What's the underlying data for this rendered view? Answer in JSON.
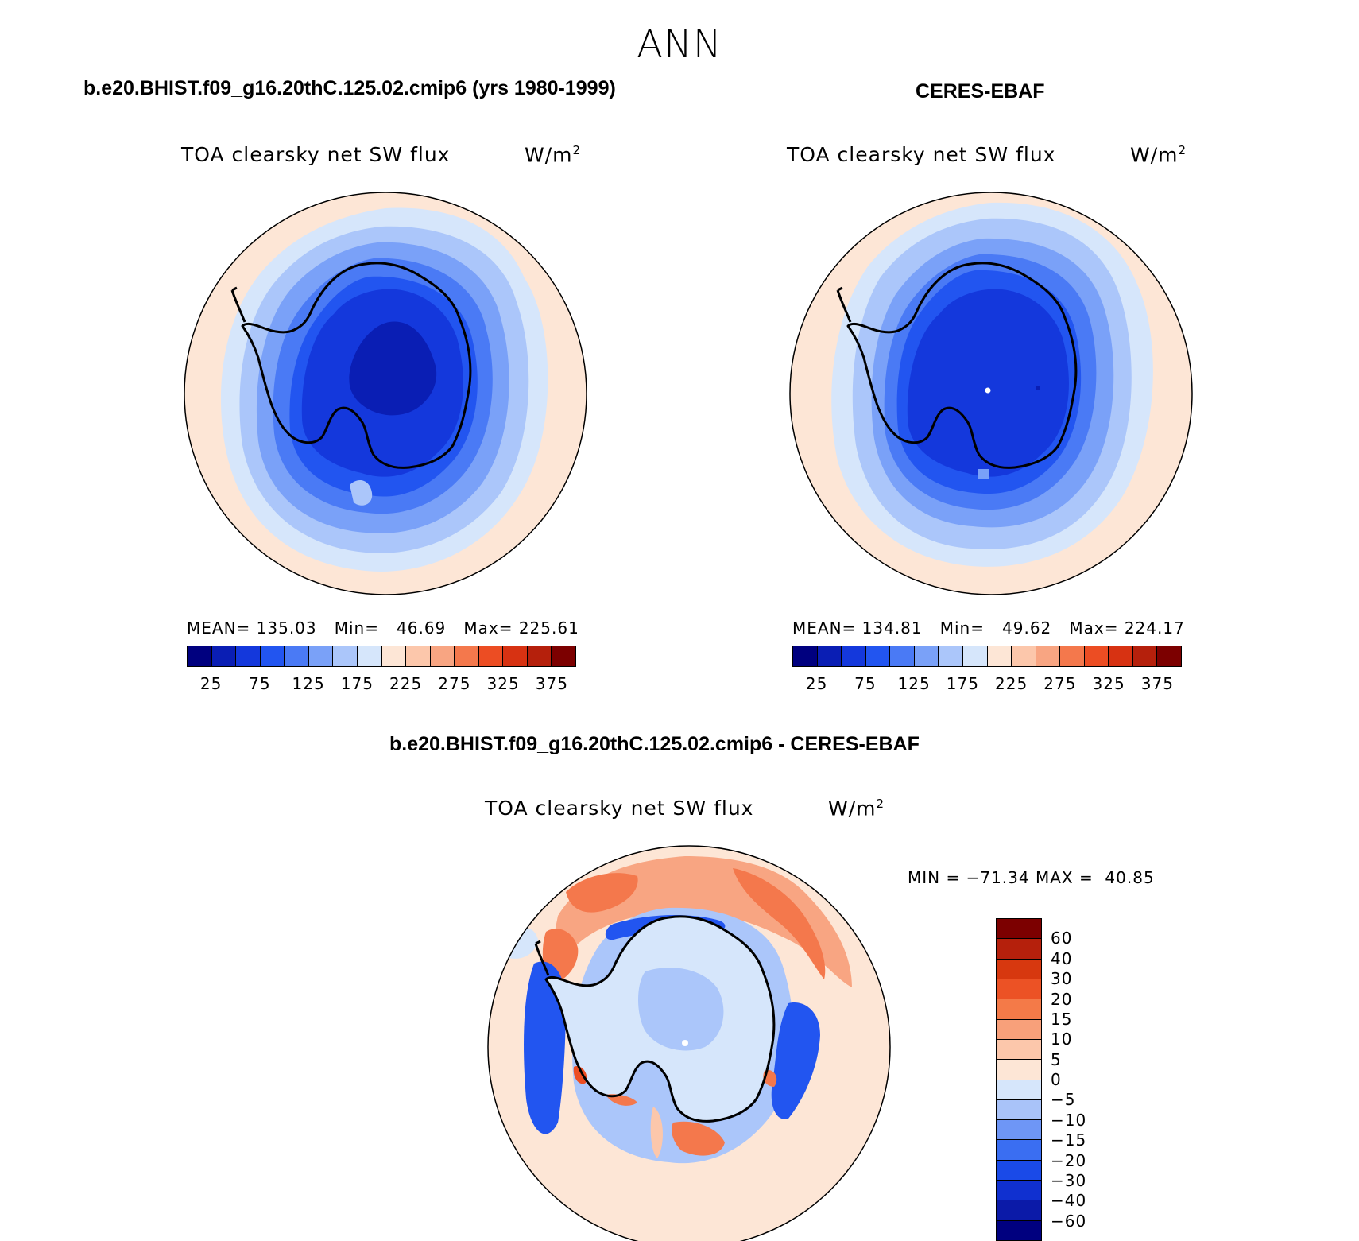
{
  "figure": {
    "title": "ANN"
  },
  "panels": [
    {
      "id": "model",
      "case_title": "b.e20.BHIST.f09_g16.20thC.125.02.cmip6 (yrs 1980-1999)",
      "variable": "TOA clearsky net SW flux",
      "units_base": "W/m",
      "units_exp": "2",
      "stats": "MEAN= 135.03   Min=   46.69   Max= 225.61"
    },
    {
      "id": "obs",
      "case_title": "CERES-EBAF",
      "variable": "TOA clearsky net SW flux",
      "units_base": "W/m",
      "units_exp": "2",
      "stats": "MEAN= 134.81   Min=   49.62   Max= 224.17"
    },
    {
      "id": "diff",
      "case_title": "b.e20.BHIST.f09_g16.20thC.125.02.cmip6 - CERES-EBAF",
      "variable": "TOA clearsky net SW flux",
      "units_base": "W/m",
      "units_exp": "2",
      "stats": "MIN = −71.34 MAX =  40.85"
    }
  ],
  "colorbar_abs": {
    "colors": [
      "#00007f",
      "#0a1eb4",
      "#1438dc",
      "#2255f0",
      "#4a7af5",
      "#7aa1f8",
      "#abc6fa",
      "#d6e6fb",
      "#fde6d6",
      "#fcc7ab",
      "#f8a582",
      "#f4784c",
      "#ec4d23",
      "#d73212",
      "#b5200c",
      "#7c0000"
    ],
    "tick_labels": [
      "25",
      "75",
      "125",
      "175",
      "225",
      "275",
      "325",
      "375"
    ]
  },
  "colorbar_diff": {
    "colors": [
      "#00007f",
      "#0b1aa8",
      "#1030d0",
      "#1a4ae8",
      "#3a6ef2",
      "#6e96f6",
      "#a9c3f9",
      "#d6e6fb",
      "#fde6d6",
      "#fcc7ab",
      "#f8a07a",
      "#f47a48",
      "#ec5225",
      "#d7380f",
      "#b5200c",
      "#7c0000"
    ],
    "tick_labels": [
      "60",
      "40",
      "30",
      "20",
      "15",
      "10",
      "5",
      "0",
      "−5",
      "−10",
      "−15",
      "−20",
      "−30",
      "−40",
      "−60"
    ]
  },
  "palette": {
    "land_outline": "#000000",
    "background_warm": "#fde6d6"
  }
}
